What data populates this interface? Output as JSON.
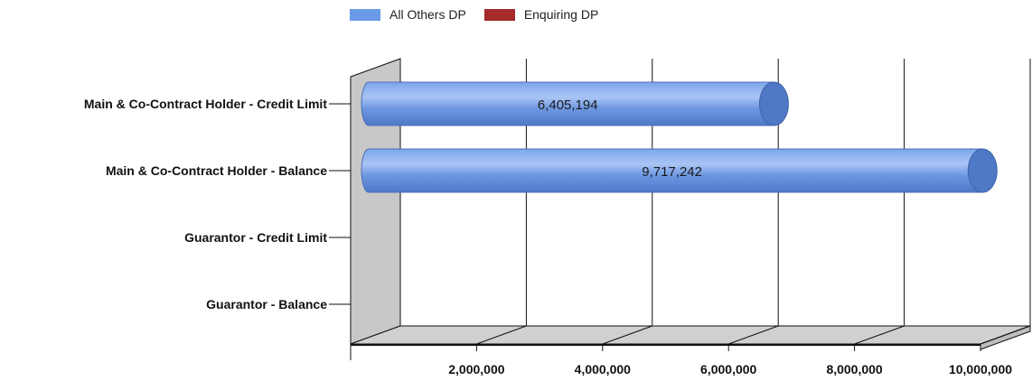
{
  "chart_data": {
    "type": "bar",
    "orientation": "horizontal",
    "style": "3d-cylinder",
    "categories": [
      "Main & Co-Contract Holder - Credit Limit",
      "Main & Co-Contract Holder - Balance",
      "Guarantor - Credit Limit",
      "Guarantor - Balance"
    ],
    "series": [
      {
        "name": "All Others DP",
        "color": "#5b87d8",
        "values": [
          6405194,
          9717242,
          null,
          null
        ]
      },
      {
        "name": "Enquiring DP",
        "color": "#a52a2a",
        "values": [
          null,
          null,
          null,
          null
        ]
      }
    ],
    "data_labels": [
      "6,405,194",
      "9,717,242",
      "",
      ""
    ],
    "x_ticks": [
      2000000,
      4000000,
      6000000,
      8000000,
      10000000
    ],
    "x_tick_labels": [
      "2,000,000",
      "4,000,000",
      "6,000,000",
      "8,000,000",
      "10,000,000"
    ],
    "xlim": [
      0,
      10000000
    ],
    "grid": true,
    "legend_position": "top"
  }
}
